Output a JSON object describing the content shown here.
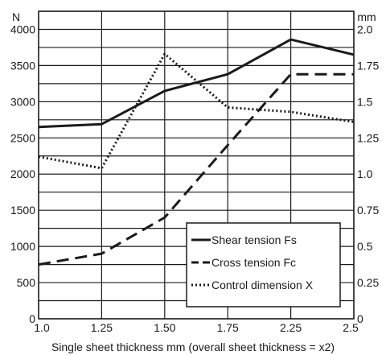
{
  "chart_data": {
    "type": "line",
    "title": "",
    "xlabel": "Single sheet thickness mm (overall sheet thickness = x2)",
    "ylabel_left": "N",
    "ylabel_right": "mm",
    "categories": [
      "1.0",
      "1.25",
      "1.50",
      "1.75",
      "2.25",
      "2.5"
    ],
    "ylim_left": [
      0,
      4250
    ],
    "ylim_right": [
      0,
      2.125
    ],
    "left_ticks": [
      0,
      500,
      1000,
      1500,
      2000,
      2500,
      3000,
      3500,
      4000
    ],
    "right_ticks": [
      "0",
      "0.25",
      "0.5",
      "0.75",
      "1.0",
      "1.25",
      "1.5",
      "1.75",
      "2.0"
    ],
    "grid": true,
    "legend_position": "bottom-right",
    "series": [
      {
        "name": "Shear tension Fs",
        "axis": "left",
        "style": "solid",
        "values": [
          2650,
          2690,
          3150,
          3380,
          3860,
          3650
        ]
      },
      {
        "name": "Cross tension Fc",
        "axis": "left",
        "style": "dashed",
        "values": [
          750,
          900,
          1400,
          2400,
          3380,
          3380
        ]
      },
      {
        "name": "Control dimension X",
        "axis": "right",
        "style": "dotted",
        "values": [
          1.12,
          1.04,
          1.83,
          1.46,
          1.43,
          1.36
        ]
      }
    ]
  }
}
